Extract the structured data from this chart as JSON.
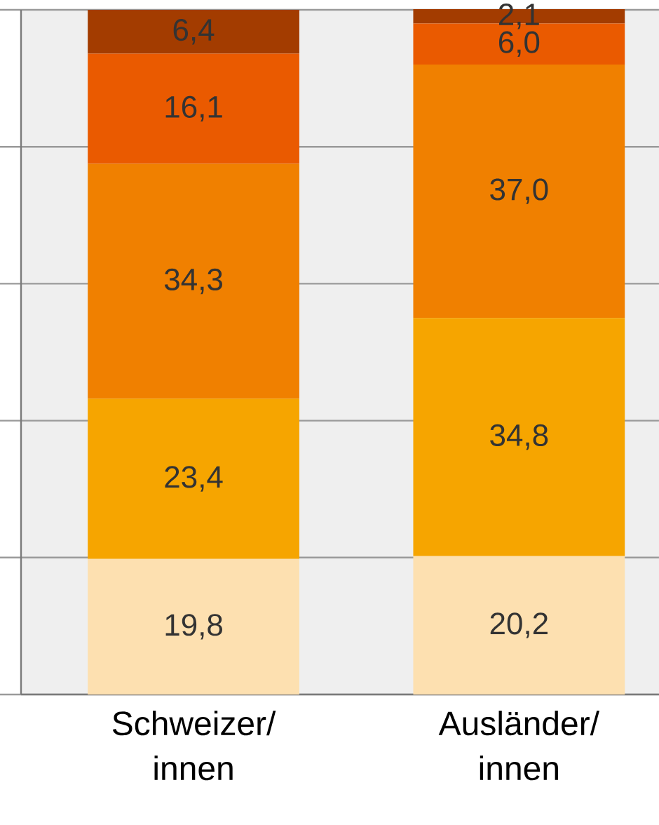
{
  "chart_data": {
    "type": "bar",
    "stacked": true,
    "categories": [
      "Schweizer/innen",
      "Ausländer/innen"
    ],
    "series": [
      {
        "color": "#fde0b0",
        "values": [
          19.8,
          20.2
        ],
        "value_labels": [
          "19,8",
          "20,2"
        ]
      },
      {
        "color": "#f6a500",
        "values": [
          23.4,
          34.8
        ],
        "value_labels": [
          "23,4",
          "34,8"
        ]
      },
      {
        "color": "#f08000",
        "values": [
          34.3,
          37.0
        ],
        "value_labels": [
          "34,3",
          "37,0"
        ]
      },
      {
        "color": "#ea5a00",
        "values": [
          16.1,
          6.0
        ],
        "value_labels": [
          "16,1",
          "6,0"
        ]
      },
      {
        "color": "#a33c00",
        "values": [
          6.4,
          2.1
        ],
        "value_labels": [
          "6,4",
          "2,1"
        ]
      }
    ],
    "ylim": [
      0,
      100
    ],
    "yticks": [
      {
        "value": 0,
        "label": null
      },
      {
        "value": 20,
        "label": null
      },
      {
        "value": 40,
        "label": null
      },
      {
        "value": 60,
        "label": null
      },
      {
        "value": 80,
        "label": null
      },
      {
        "value": 100,
        "label": null
      }
    ],
    "grid": "y",
    "tick_labels": "x"
  }
}
